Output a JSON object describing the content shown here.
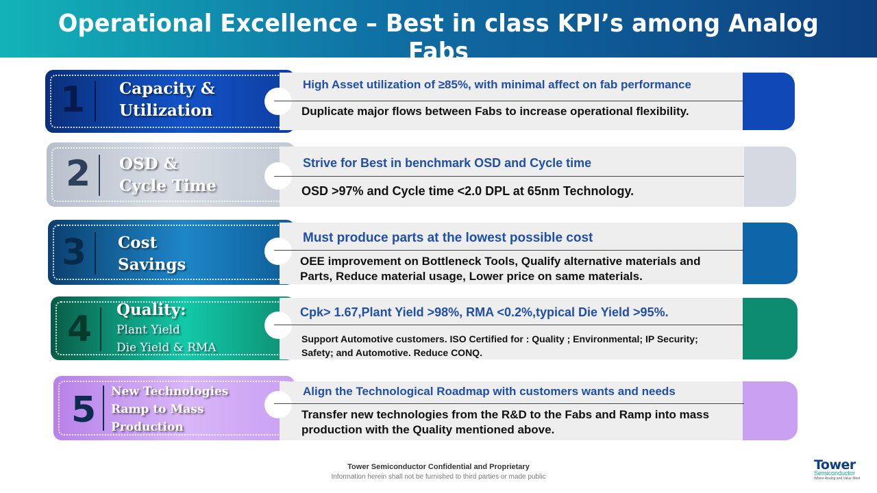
{
  "title": "Operational Excellence – Best in class KPI’s among Analog Fabs",
  "rows": [
    {
      "number": "1",
      "label_line1": "Capacity &",
      "label_line2": "Utilization",
      "label_line3": "",
      "headline": "High Asset utilization of ≥85%, with minimal affect on fab performance",
      "detail": "Duplicate major flows between Fabs to increase operational flexibility.",
      "color": "#1048b8"
    },
    {
      "number": "2",
      "label_line1": "OSD &",
      "label_line2": "Cycle Time",
      "label_line3": "",
      "headline": "Strive for Best in benchmark OSD and Cycle time",
      "detail": "OSD >97% and Cycle time <2.0 DPL at 65nm Technology.",
      "color": "#d5dae2"
    },
    {
      "number": "3",
      "label_line1": "Cost",
      "label_line2": "Savings",
      "label_line3": "",
      "headline": "Must produce parts at the lowest possible cost",
      "detail": "OEE improvement on Bottleneck Tools, Qualify alternative materials and Parts, Reduce material usage,  Lower price on same materials.",
      "color": "#0e66a8"
    },
    {
      "number": "4",
      "label_line1": "Quality:",
      "label_line2": "Plant Yield",
      "label_line3": "Die Yield & RMA",
      "headline": "Cpk> 1.67,Plant Yield >98%, RMA <0.2%,typical  Die Yield >95%.",
      "detail": "Support Automotive customers. ISO Certified for : Quality ; Environmental; IP Security; Safety; and Automotive. Reduce CONQ.",
      "color": "#0e8c70"
    },
    {
      "number": "5",
      "label_line1": "New Technologies",
      "label_line2": "Ramp to Mass",
      "label_line3": "Production",
      "headline": "Align the Technological Roadmap with customers wants and needs",
      "detail": "Transfer new technologies from the R&D to the Fabs and Ramp into mass production with the Quality mentioned above.",
      "color": "#c9a0f2"
    }
  ],
  "footer": {
    "line1": "Tower Semiconductor Confidential and Proprietary",
    "line2": "Information herein shall not be furnished to third parties or made public"
  },
  "logo": {
    "word": "Tower",
    "sub": "Semiconductor",
    "tagline": "Where Analog and Value Meet"
  }
}
